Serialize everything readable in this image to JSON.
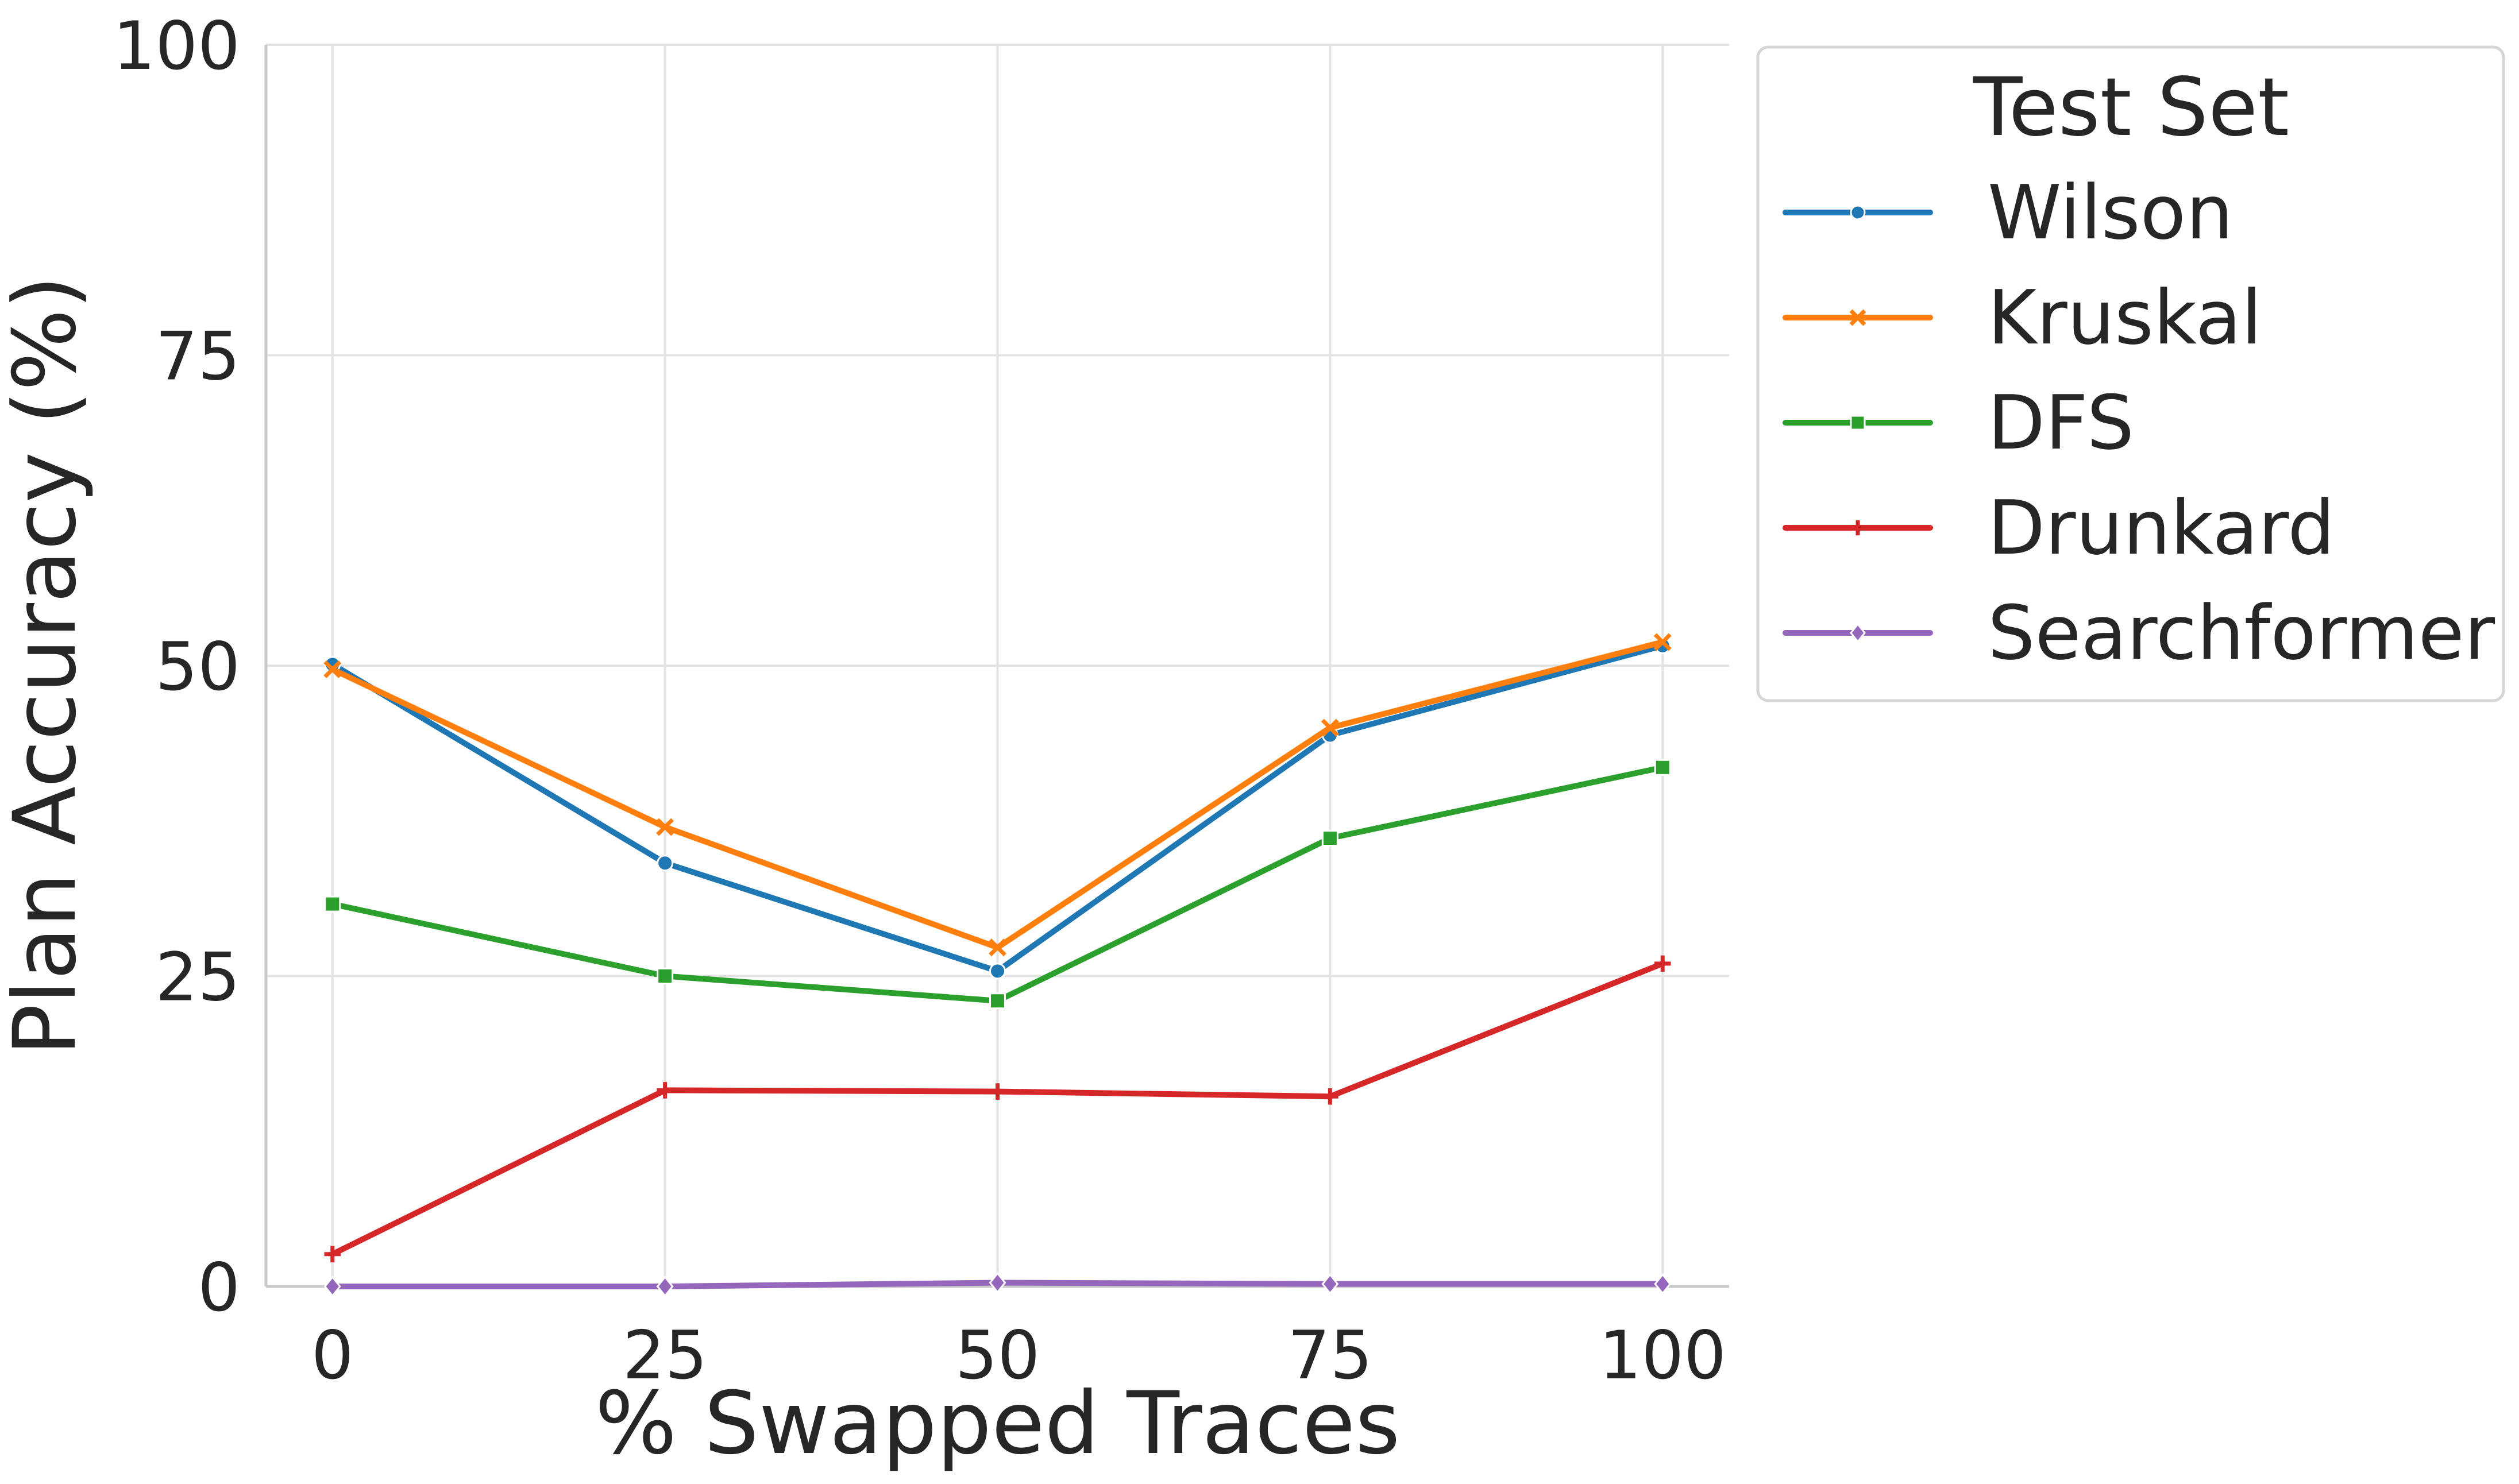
{
  "chart_data": {
    "type": "line",
    "title": "",
    "xlabel": "% Swapped Traces",
    "ylabel": "Plan Accuracy (%)",
    "x": [
      0,
      25,
      50,
      75,
      100
    ],
    "x_tick_labels": [
      "0",
      "25",
      "50",
      "75",
      "100"
    ],
    "y_ticks": [
      0,
      25,
      50,
      75,
      100
    ],
    "y_tick_labels": [
      "0",
      "25",
      "50",
      "75",
      "100"
    ],
    "xlim": [
      -5,
      105
    ],
    "ylim": [
      0,
      100
    ],
    "grid": true,
    "legend": {
      "title": "Test Set",
      "placement": "outside-upper-right"
    },
    "series": [
      {
        "name": "Wilson",
        "color": "#1f77b4",
        "marker": "circle",
        "values": [
          50.1,
          34.1,
          25.4,
          44.4,
          51.6
        ]
      },
      {
        "name": "Kruskal",
        "color": "#ff7f0e",
        "marker": "x",
        "values": [
          49.7,
          37.0,
          27.3,
          45.0,
          51.9
        ]
      },
      {
        "name": "DFS",
        "color": "#2ca02c",
        "marker": "square",
        "values": [
          30.8,
          25.0,
          23.0,
          36.1,
          41.8
        ]
      },
      {
        "name": "Drunkard",
        "color": "#d62728",
        "marker": "plus",
        "values": [
          2.6,
          15.8,
          15.7,
          15.3,
          26.0
        ]
      },
      {
        "name": "Searchformer",
        "color": "#9467bd",
        "marker": "diamond",
        "values": [
          0.0,
          0.0,
          0.3,
          0.2,
          0.2
        ]
      }
    ]
  }
}
